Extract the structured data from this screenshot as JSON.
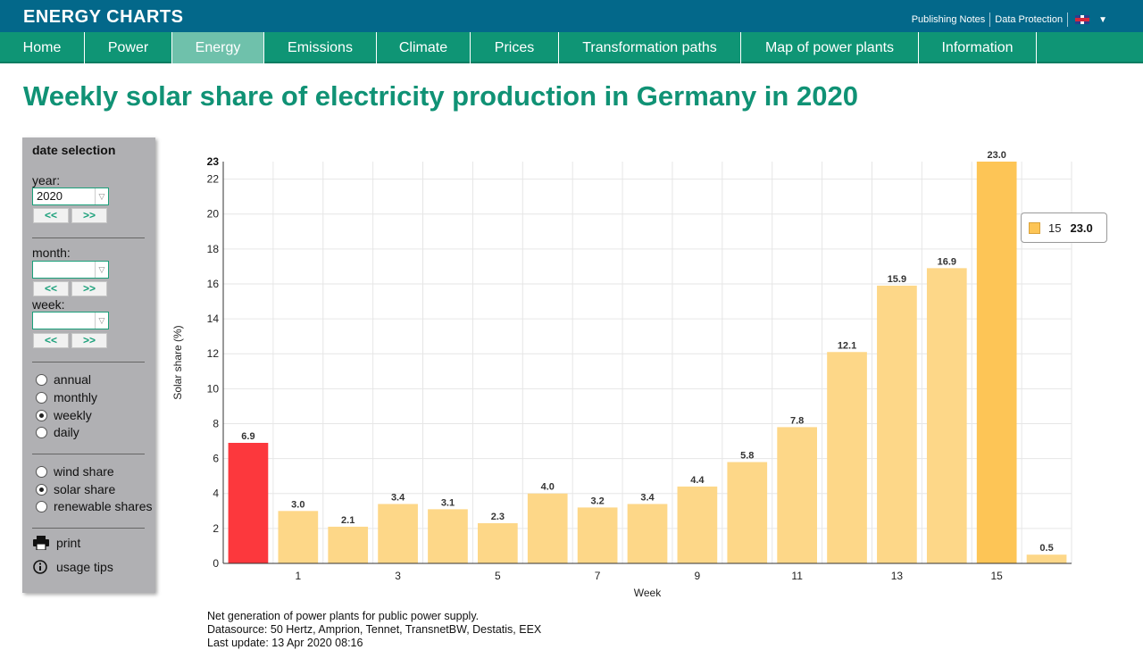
{
  "header": {
    "brand": "ENERGY CHARTS",
    "links": [
      "Publishing Notes",
      "Data Protection"
    ]
  },
  "nav": {
    "items": [
      "Home",
      "Power",
      "Energy",
      "Emissions",
      "Climate",
      "Prices",
      "Transformation paths",
      "Map of power plants",
      "Information"
    ],
    "active": "Energy"
  },
  "page_title": "Weekly solar share of electricity production in Germany in 2020",
  "sidebar": {
    "title": "date selection",
    "year_label": "year:",
    "year_value": "2020",
    "month_label": "month:",
    "month_value": "",
    "week_label": "week:",
    "week_value": "",
    "prev_label": "<<",
    "next_label": ">>",
    "period_options": [
      "annual",
      "monthly",
      "weekly",
      "daily"
    ],
    "period_selected": "weekly",
    "share_options": [
      "wind share",
      "solar share",
      "renewable shares"
    ],
    "share_selected": "solar share",
    "print_label": "print",
    "tips_label": "usage tips"
  },
  "chart_data": {
    "type": "bar",
    "title": "Weekly solar share of electricity production in Germany in 2020",
    "xlabel": "Week",
    "ylabel": "Solar share (%)",
    "ylim": [
      0,
      23
    ],
    "y_ticks": [
      0,
      2,
      4,
      6,
      8,
      10,
      12,
      14,
      16,
      18,
      20,
      22
    ],
    "y_max_label": "23",
    "categories": [
      "0",
      "1",
      "2",
      "3",
      "4",
      "5",
      "6",
      "7",
      "8",
      "9",
      "10",
      "11",
      "12",
      "13",
      "14",
      "15",
      "16"
    ],
    "x_tick_labels": [
      "1",
      "3",
      "5",
      "7",
      "9",
      "11",
      "13",
      "15"
    ],
    "values": [
      6.9,
      3.0,
      2.1,
      3.4,
      3.1,
      2.3,
      4.0,
      3.2,
      3.4,
      4.4,
      5.8,
      7.8,
      12.1,
      15.9,
      16.9,
      23.0,
      0.5
    ],
    "value_labels": [
      "6.9",
      "3.0",
      "2.1",
      "3.4",
      "3.1",
      "2.3",
      "4.0",
      "3.2",
      "3.4",
      "4.4",
      "5.8",
      "7.8",
      "12.1",
      "15.9",
      "16.9",
      "23.0",
      "0.5"
    ],
    "highlighted_index": 0,
    "hovered_index": 15,
    "colors": {
      "bar": "#fdd788",
      "highlight": "#fc383d",
      "hover": "#fdc556",
      "grid": "#e6e6e6",
      "title": "#109275",
      "header": "#03688a",
      "nav": "#0f9575",
      "nav_active": "#6fc1ab"
    },
    "tooltip": {
      "category": "15",
      "value": "23.0"
    }
  },
  "footer": {
    "line1": "Net generation of power plants for public power supply.",
    "line2": "Datasource: 50 Hertz, Amprion, Tennet, TransnetBW, Destatis, EEX",
    "line3": "Last update: 13 Apr 2020 08:16"
  }
}
